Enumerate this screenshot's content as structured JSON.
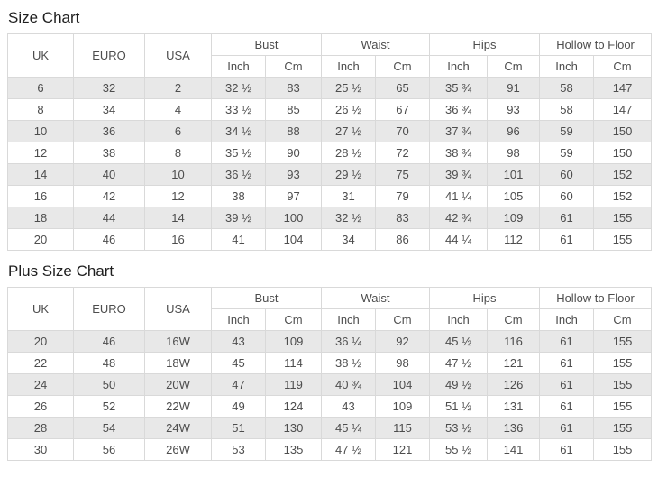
{
  "colors": {
    "stripe": "#e8e8e8",
    "border": "#d9d9d9",
    "text": "#4d4d4d",
    "title": "#1f1f1f"
  },
  "tables": [
    {
      "title": "Size Chart",
      "headers": {
        "uk": "UK",
        "euro": "EURO",
        "usa": "USA",
        "bust": "Bust",
        "waist": "Waist",
        "hips": "Hips",
        "hollow": "Hollow to Floor",
        "inch": "Inch",
        "cm": "Cm"
      },
      "rows": [
        [
          "6",
          "32",
          "2",
          "32 ½",
          "83",
          "25 ½",
          "65",
          "35 ¾",
          "91",
          "58",
          "147"
        ],
        [
          "8",
          "34",
          "4",
          "33 ½",
          "85",
          "26 ½",
          "67",
          "36 ¾",
          "93",
          "58",
          "147"
        ],
        [
          "10",
          "36",
          "6",
          "34 ½",
          "88",
          "27 ½",
          "70",
          "37 ¾",
          "96",
          "59",
          "150"
        ],
        [
          "12",
          "38",
          "8",
          "35 ½",
          "90",
          "28 ½",
          "72",
          "38 ¾",
          "98",
          "59",
          "150"
        ],
        [
          "14",
          "40",
          "10",
          "36 ½",
          "93",
          "29 ½",
          "75",
          "39 ¾",
          "101",
          "60",
          "152"
        ],
        [
          "16",
          "42",
          "12",
          "38",
          "97",
          "31",
          "79",
          "41 ¼",
          "105",
          "60",
          "152"
        ],
        [
          "18",
          "44",
          "14",
          "39 ½",
          "100",
          "32 ½",
          "83",
          "42 ¾",
          "109",
          "61",
          "155"
        ],
        [
          "20",
          "46",
          "16",
          "41",
          "104",
          "34",
          "86",
          "44 ¼",
          "112",
          "61",
          "155"
        ]
      ]
    },
    {
      "title": "Plus Size Chart",
      "headers": {
        "uk": "UK",
        "euro": "EURO",
        "usa": "USA",
        "bust": "Bust",
        "waist": "Waist",
        "hips": "Hips",
        "hollow": "Hollow to Floor",
        "inch": "Inch",
        "cm": "Cm"
      },
      "rows": [
        [
          "20",
          "46",
          "16W",
          "43",
          "109",
          "36 ¼",
          "92",
          "45 ½",
          "116",
          "61",
          "155"
        ],
        [
          "22",
          "48",
          "18W",
          "45",
          "114",
          "38 ½",
          "98",
          "47 ½",
          "121",
          "61",
          "155"
        ],
        [
          "24",
          "50",
          "20W",
          "47",
          "119",
          "40 ¾",
          "104",
          "49 ½",
          "126",
          "61",
          "155"
        ],
        [
          "26",
          "52",
          "22W",
          "49",
          "124",
          "43",
          "109",
          "51 ½",
          "131",
          "61",
          "155"
        ],
        [
          "28",
          "54",
          "24W",
          "51",
          "130",
          "45 ¼",
          "115",
          "53 ½",
          "136",
          "61",
          "155"
        ],
        [
          "30",
          "56",
          "26W",
          "53",
          "135",
          "47 ½",
          "121",
          "55 ½",
          "141",
          "61",
          "155"
        ]
      ]
    }
  ]
}
